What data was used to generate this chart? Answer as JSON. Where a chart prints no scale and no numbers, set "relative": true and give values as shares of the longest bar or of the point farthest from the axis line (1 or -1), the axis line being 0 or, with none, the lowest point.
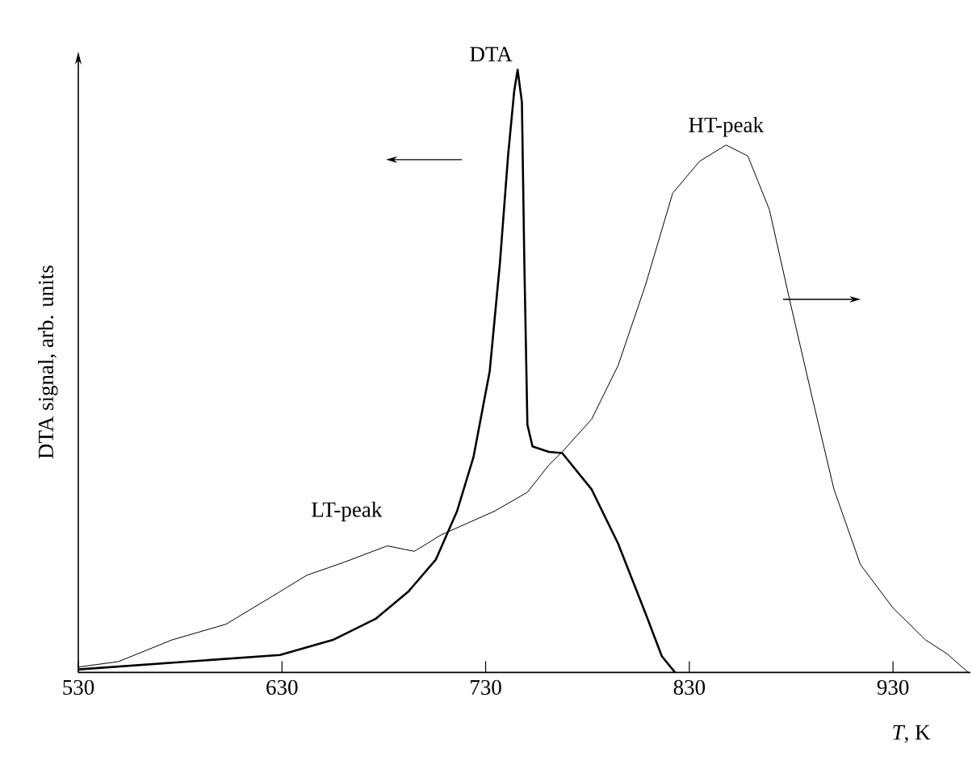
{
  "chart_data": {
    "type": "line",
    "relative": true,
    "xlabel": "*T*, K",
    "ylabel": "DTA signal, arb. units",
    "xlim": [
      530,
      968
    ],
    "xticks": [
      530,
      630,
      730,
      830,
      930
    ],
    "grid": false,
    "marker": "none",
    "line_style": "solid",
    "series": [
      {
        "name": "DTA",
        "color": "#000000",
        "x": [
          530,
          629,
          655,
          676,
          692,
          705.5,
          716,
          724,
          732,
          737,
          741,
          744,
          745.7,
          747.8,
          749,
          750.5,
          753,
          761,
          767.6,
          782,
          795,
          808.5,
          816.5,
          823
        ],
        "values": [
          0.005,
          0.029,
          0.054,
          0.089,
          0.134,
          0.187,
          0.268,
          0.357,
          0.5,
          0.679,
          0.857,
          0.964,
          1.0,
          0.946,
          0.679,
          0.411,
          0.375,
          0.366,
          0.364,
          0.304,
          0.214,
          0.098,
          0.027,
          0.0
        ]
      },
      {
        "color": "#000000",
        "x": [
          530,
          549.7,
          576,
          602.5,
          629,
          642,
          660.6,
          681.7,
          695,
          708,
          734.6,
          750.5,
          761,
          767.6,
          782,
          795,
          808.5,
          821.8,
          835,
          848,
          858.7,
          869.3,
          880,
          890.4,
          901,
          914,
          930,
          946,
          956.5,
          967
        ],
        "values": [
          0.009,
          0.018,
          0.054,
          0.08,
          0.134,
          0.161,
          0.183,
          0.21,
          0.201,
          0.228,
          0.268,
          0.299,
          0.344,
          0.366,
          0.42,
          0.509,
          0.643,
          0.795,
          0.848,
          0.875,
          0.857,
          0.768,
          0.607,
          0.455,
          0.304,
          0.179,
          0.107,
          0.054,
          0.031,
          0.0
        ]
      }
    ],
    "annotations": [
      {
        "text": "HT-peak",
        "x": 848,
        "y": 0.875
      },
      {
        "text": "LT-peak",
        "x": 681.7,
        "y": 0.21
      }
    ]
  }
}
